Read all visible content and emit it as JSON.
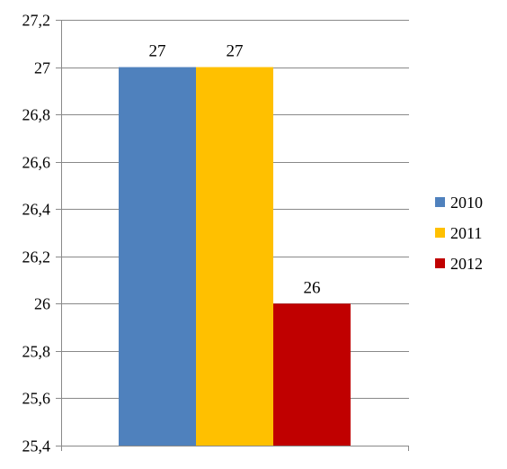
{
  "chart_data": {
    "type": "bar",
    "title": "",
    "xlabel": "",
    "ylabel": "",
    "categories": [
      ""
    ],
    "series": [
      {
        "name": "2010",
        "values": [
          27
        ],
        "color": "#4F81BD",
        "label": "27"
      },
      {
        "name": "2011",
        "values": [
          27
        ],
        "color": "#FFC000",
        "label": "27"
      },
      {
        "name": "2012",
        "values": [
          26
        ],
        "color": "#C00000",
        "label": "26"
      }
    ],
    "ylim": [
      25.4,
      27.2
    ],
    "yticks": [
      25.4,
      25.6,
      25.8,
      26,
      26.2,
      26.4,
      26.6,
      26.8,
      27,
      27.2
    ],
    "ytick_labels": [
      "25,4",
      "25,6",
      "25,8",
      "26",
      "26,2",
      "26,4",
      "26,6",
      "26,8",
      "27",
      "27,2"
    ],
    "grid": true,
    "legend": "right"
  }
}
